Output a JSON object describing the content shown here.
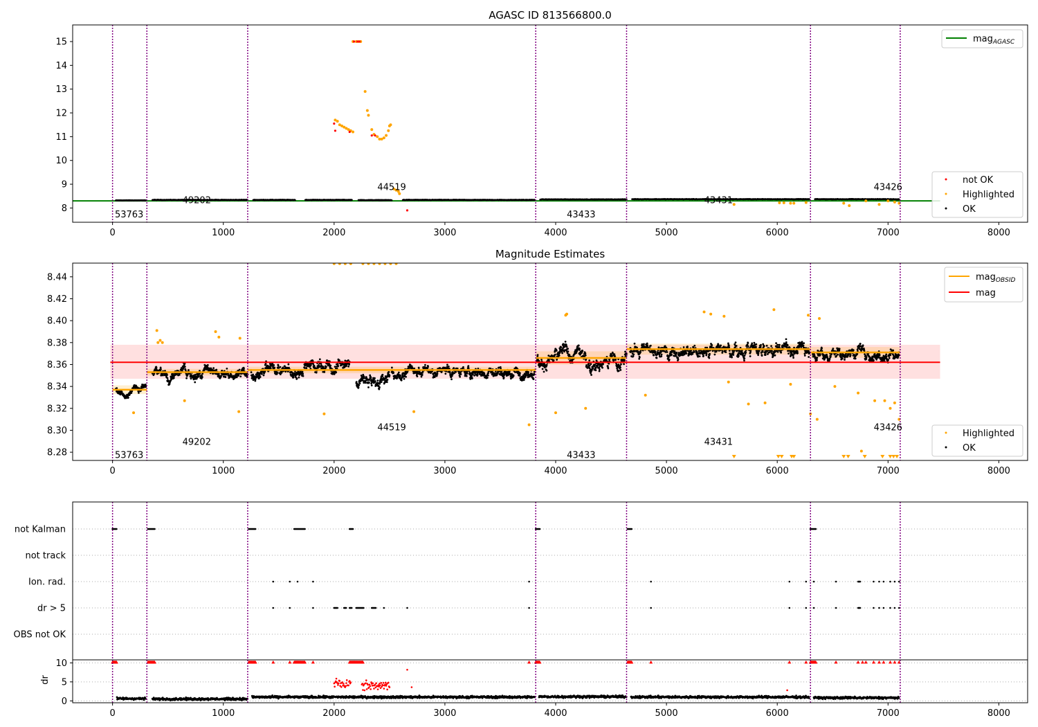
{
  "chart_data": [
    {
      "type": "scatter",
      "title": "AGASC ID 813566800.0",
      "xlim": [
        -360,
        8260
      ],
      "ylim": [
        7.4,
        15.7
      ],
      "xticks": [
        "0",
        "1000",
        "2000",
        "3000",
        "4000",
        "5000",
        "6000",
        "7000",
        "8000"
      ],
      "yticks": [
        "8",
        "9",
        "10",
        "11",
        "12",
        "13",
        "14",
        "15"
      ],
      "obs_boundaries": [
        0,
        310,
        1220,
        3820,
        4640,
        6300,
        7110
      ],
      "obsid_labels": [
        {
          "text": "53763",
          "x": 150,
          "y": 7.75
        },
        {
          "text": "49202",
          "x": 760,
          "y": 8.35
        },
        {
          "text": "44519",
          "x": 2520,
          "y": 8.9
        },
        {
          "text": "43433",
          "x": 4230,
          "y": 7.75
        },
        {
          "text": "43431",
          "x": 5470,
          "y": 8.35
        },
        {
          "text": "43426",
          "x": 7000,
          "y": 8.9
        }
      ],
      "mag_agasc_line": 8.3,
      "legend_line": {
        "main": "mag",
        "sub": "AGASC"
      },
      "legend_points": [
        "not OK",
        "Highlighted",
        "OK"
      ],
      "series": [
        {
          "name": "OK",
          "color": "#000000",
          "segments": [
            {
              "x0": 30,
              "x1": 300,
              "y": 8.32
            },
            {
              "x0": 360,
              "x1": 1220,
              "y": 8.34
            },
            {
              "x0": 1270,
              "x1": 1650,
              "y": 8.34
            },
            {
              "x0": 1740,
              "x1": 2160,
              "y": 8.34
            },
            {
              "x0": 2220,
              "x1": 2520,
              "y": 8.33
            },
            {
              "x0": 2620,
              "x1": 3810,
              "y": 8.34
            },
            {
              "x0": 3860,
              "x1": 4640,
              "y": 8.36
            },
            {
              "x0": 4690,
              "x1": 6290,
              "y": 8.37
            },
            {
              "x0": 6340,
              "x1": 7100,
              "y": 8.37
            }
          ]
        },
        {
          "name": "Highlighted",
          "color": "#ffa500",
          "points": [
            [
              2010,
              11.7
            ],
            [
              2030,
              11.65
            ],
            [
              2050,
              11.5
            ],
            [
              2070,
              11.45
            ],
            [
              2090,
              11.4
            ],
            [
              2110,
              11.35
            ],
            [
              2130,
              11.3
            ],
            [
              2150,
              11.25
            ],
            [
              2170,
              11.2
            ],
            [
              2280,
              12.9
            ],
            [
              2300,
              12.1
            ],
            [
              2310,
              11.9
            ],
            [
              2340,
              11.3
            ],
            [
              2360,
              11.1
            ],
            [
              2390,
              11.0
            ],
            [
              2410,
              10.9
            ],
            [
              2430,
              10.9
            ],
            [
              2450,
              10.95
            ],
            [
              2470,
              11.05
            ],
            [
              2490,
              11.25
            ],
            [
              2500,
              11.45
            ],
            [
              2510,
              11.5
            ],
            [
              2540,
              8.8
            ],
            [
              2560,
              8.75
            ],
            [
              2580,
              8.7
            ],
            [
              2590,
              8.6
            ],
            [
              2170,
              15.0
            ],
            [
              2200,
              15.0
            ],
            [
              2220,
              15.0
            ],
            [
              2240,
              15.0
            ],
            [
              5610,
              8.15
            ],
            [
              6020,
              8.22
            ],
            [
              6060,
              8.22
            ],
            [
              6120,
              8.2
            ],
            [
              6150,
              8.2
            ],
            [
              6260,
              8.23
            ],
            [
              6600,
              8.2
            ],
            [
              6650,
              8.1
            ],
            [
              6800,
              8.3
            ],
            [
              6920,
              8.15
            ],
            [
              7000,
              8.3
            ],
            [
              7060,
              8.25
            ],
            [
              7100,
              8.2
            ]
          ]
        },
        {
          "name": "not OK",
          "color": "#ff0000",
          "points": [
            [
              2000,
              11.55
            ],
            [
              2010,
              11.25
            ],
            [
              2140,
              11.2
            ],
            [
              2180,
              15.0
            ],
            [
              2210,
              15.0
            ],
            [
              2230,
              15.0
            ],
            [
              2340,
              11.05
            ],
            [
              2370,
              11.05
            ],
            [
              2660,
              7.9
            ]
          ]
        }
      ]
    },
    {
      "type": "scatter",
      "title": "Magnitude Estimates",
      "xlim": [
        -360,
        8260
      ],
      "ylim": [
        8.2725,
        8.4525
      ],
      "xticks": [
        "0",
        "1000",
        "2000",
        "3000",
        "4000",
        "5000",
        "6000",
        "7000",
        "8000"
      ],
      "yticks": [
        "8.28",
        "8.30",
        "8.32",
        "8.34",
        "8.36",
        "8.38",
        "8.40",
        "8.42",
        "8.44"
      ],
      "obsid_labels": [
        {
          "text": "53763",
          "x": 150,
          "y": 8.278
        },
        {
          "text": "49202",
          "x": 760,
          "y": 8.29
        },
        {
          "text": "44519",
          "x": 2520,
          "y": 8.303
        },
        {
          "text": "43433",
          "x": 4230,
          "y": 8.278
        },
        {
          "text": "43431",
          "x": 5470,
          "y": 8.29
        },
        {
          "text": "43426",
          "x": 7000,
          "y": 8.303
        }
      ],
      "mag": 8.362,
      "mag_band": [
        8.347,
        8.378
      ],
      "mag_extent": [
        -20,
        7470
      ],
      "mag_obsid": [
        {
          "x0": 0,
          "x1": 310,
          "y": 8.337,
          "lo": 8.333,
          "hi": 8.341
        },
        {
          "x0": 310,
          "x1": 1220,
          "y": 8.353,
          "lo": 8.35,
          "hi": 8.356
        },
        {
          "x0": 1220,
          "x1": 3820,
          "y": 8.355,
          "lo": 8.352,
          "hi": 8.358
        },
        {
          "x0": 3820,
          "x1": 4640,
          "y": 8.366,
          "lo": 8.36,
          "hi": 8.372
        },
        {
          "x0": 4640,
          "x1": 6300,
          "y": 8.374,
          "lo": 8.369,
          "hi": 8.379
        },
        {
          "x0": 6300,
          "x1": 7110,
          "y": 8.371,
          "lo": 8.366,
          "hi": 8.376
        }
      ],
      "legend_lines": [
        {
          "main": "mag",
          "sub": "OBSID",
          "color": "#ffa500"
        },
        {
          "main": "mag",
          "sub": "",
          "color": "#ff0000"
        }
      ],
      "legend_points": [
        "Highlighted",
        "OK"
      ],
      "ok_segments": [
        {
          "x0": 30,
          "x1": 300,
          "y": 8.338,
          "spread": 0.006
        },
        {
          "x0": 360,
          "x1": 1220,
          "y": 8.351,
          "spread": 0.009
        },
        {
          "x0": 1250,
          "x1": 1720,
          "y": 8.355,
          "spread": 0.01
        },
        {
          "x0": 1730,
          "x1": 2140,
          "y": 8.36,
          "spread": 0.01
        },
        {
          "x0": 2200,
          "x1": 2500,
          "y": 8.345,
          "spread": 0.01
        },
        {
          "x0": 2520,
          "x1": 3810,
          "y": 8.353,
          "spread": 0.009
        },
        {
          "x0": 3830,
          "x1": 4640,
          "y": 8.365,
          "spread": 0.013
        },
        {
          "x0": 4670,
          "x1": 6290,
          "y": 8.373,
          "spread": 0.011
        },
        {
          "x0": 6320,
          "x1": 7100,
          "y": 8.371,
          "spread": 0.01
        }
      ],
      "highlighted_points": [
        [
          400,
          8.391
        ],
        [
          410,
          8.38
        ],
        [
          430,
          8.382
        ],
        [
          450,
          8.38
        ],
        [
          650,
          8.327
        ],
        [
          930,
          8.39
        ],
        [
          960,
          8.385
        ],
        [
          1150,
          8.384
        ],
        [
          1140,
          8.317
        ],
        [
          190,
          8.316
        ],
        [
          1910,
          8.315
        ],
        [
          2720,
          8.317
        ],
        [
          3760,
          8.305
        ],
        [
          4000,
          8.316
        ],
        [
          4090,
          8.405
        ],
        [
          4100,
          8.406
        ],
        [
          4270,
          8.32
        ],
        [
          4810,
          8.332
        ],
        [
          5340,
          8.408
        ],
        [
          5400,
          8.406
        ],
        [
          5520,
          8.404
        ],
        [
          5560,
          8.344
        ],
        [
          5740,
          8.324
        ],
        [
          5890,
          8.325
        ],
        [
          5970,
          8.41
        ],
        [
          6120,
          8.342
        ],
        [
          6280,
          8.405
        ],
        [
          6300,
          8.315
        ],
        [
          6360,
          8.31
        ],
        [
          6380,
          8.402
        ],
        [
          6520,
          8.34
        ],
        [
          6730,
          8.334
        ],
        [
          6760,
          8.281
        ],
        [
          6880,
          8.327
        ],
        [
          6970,
          8.327
        ],
        [
          7020,
          8.32
        ],
        [
          7060,
          8.325
        ],
        [
          7100,
          8.31
        ],
        [
          2000,
          8.452
        ],
        [
          2050,
          8.452
        ],
        [
          2100,
          8.452
        ],
        [
          2150,
          8.452
        ],
        [
          2260,
          8.452
        ],
        [
          2310,
          8.452
        ],
        [
          2360,
          8.452
        ],
        [
          2410,
          8.452
        ],
        [
          2460,
          8.452
        ],
        [
          2510,
          8.452
        ],
        [
          2560,
          8.452
        ]
      ],
      "off_scale_markers": [
        5610,
        6010,
        6040,
        6130,
        6150,
        6600,
        6640,
        6790,
        6950,
        7020,
        7050,
        7080
      ]
    },
    {
      "type": "scatter",
      "xlim": [
        -360,
        8260
      ],
      "xticks": [
        "0",
        "1000",
        "2000",
        "3000",
        "4000",
        "5000",
        "6000",
        "7000",
        "8000"
      ],
      "flag_rows": [
        "not Kalman",
        "not track",
        "Ion. rad.",
        "dr > 5",
        "OBS not OK"
      ],
      "flags": {
        "not Kalman": [
          [
            0,
            40
          ],
          [
            320,
            380
          ],
          [
            1230,
            1290
          ],
          [
            1640,
            1740
          ],
          [
            2140,
            2170
          ],
          [
            3820,
            3860
          ],
          [
            4650,
            4690
          ],
          [
            6300,
            6350
          ]
        ],
        "not track": [],
        "Ion. rad.": [
          [
            1450,
            1450
          ],
          [
            1600,
            1600
          ],
          [
            1670,
            1670
          ],
          [
            1810,
            1810
          ],
          [
            3760,
            3760
          ],
          [
            4860,
            4860
          ],
          [
            6110,
            6110
          ],
          [
            6260,
            6260
          ],
          [
            6330,
            6330
          ],
          [
            6530,
            6530
          ],
          [
            6730,
            6750
          ],
          [
            6870,
            6870
          ],
          [
            6920,
            6920
          ],
          [
            6960,
            6960
          ],
          [
            7020,
            7020
          ],
          [
            7060,
            7060
          ],
          [
            7100,
            7100
          ]
        ],
        "dr > 5": [
          [
            1450,
            1450
          ],
          [
            1600,
            1600
          ],
          [
            1810,
            1810
          ],
          [
            2000,
            2030
          ],
          [
            2090,
            2110
          ],
          [
            2140,
            2160
          ],
          [
            2200,
            2270
          ],
          [
            2340,
            2380
          ],
          [
            2450,
            2450
          ],
          [
            2660,
            2660
          ],
          [
            3760,
            3760
          ],
          [
            4860,
            4860
          ],
          [
            6110,
            6110
          ],
          [
            6260,
            6260
          ],
          [
            6330,
            6330
          ],
          [
            6530,
            6530
          ],
          [
            6730,
            6750
          ],
          [
            6870,
            6870
          ],
          [
            6920,
            6920
          ],
          [
            6960,
            6960
          ],
          [
            7020,
            7020
          ],
          [
            7060,
            7060
          ],
          [
            7100,
            7100
          ]
        ],
        "OBS not OK": []
      },
      "dr_yticks": [
        "0",
        "5",
        "10"
      ],
      "dr_ylabel": "dr",
      "dr_ylim": [
        -0.5,
        10.8
      ],
      "dr_capped_ranges": [
        [
          0,
          40
        ],
        [
          320,
          380
        ],
        [
          1230,
          1290
        ],
        [
          1640,
          1740
        ],
        [
          2140,
          2260
        ],
        [
          3820,
          3860
        ],
        [
          4650,
          4690
        ],
        [
          6300,
          6350
        ]
      ],
      "dr_capped_points": [
        1450,
        1600,
        1810,
        3760,
        4860,
        6110,
        6260,
        6530,
        6730,
        6770,
        6800,
        6870,
        6920,
        6960,
        7020,
        7060,
        7100
      ],
      "dr_baseline": [
        {
          "x0": 40,
          "x1": 300,
          "y": 0.6
        },
        {
          "x0": 360,
          "x1": 1220,
          "y": 0.5
        },
        {
          "x0": 1260,
          "x1": 3810,
          "y": 1.0
        },
        {
          "x0": 3850,
          "x1": 4640,
          "y": 1.1
        },
        {
          "x0": 4680,
          "x1": 6290,
          "y": 1.0
        },
        {
          "x0": 6330,
          "x1": 7100,
          "y": 0.8
        }
      ],
      "dr_red_ranges": [
        [
          2000,
          2150,
          4.5
        ],
        [
          2250,
          2500,
          4.0
        ]
      ],
      "dr_red_points": [
        [
          2660,
          8.2
        ],
        [
          2700,
          3.6
        ],
        [
          6090,
          2.8
        ]
      ]
    }
  ]
}
